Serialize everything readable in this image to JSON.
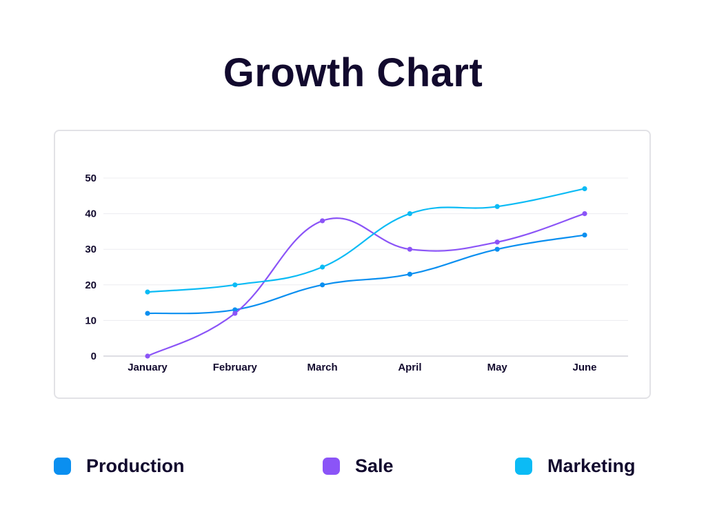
{
  "title": "Growth Chart",
  "chart_data": {
    "type": "line",
    "title": "Growth Chart",
    "xlabel": "",
    "ylabel": "",
    "categories": [
      "January",
      "February",
      "March",
      "April",
      "May",
      "June"
    ],
    "yticks": [
      0,
      10,
      20,
      30,
      40,
      50
    ],
    "ylim": [
      0,
      50
    ],
    "grid": true,
    "legend_position": "bottom",
    "smooth": true,
    "series": [
      {
        "name": "Production",
        "color": "#0a8ff0",
        "values": [
          12,
          13,
          20,
          23,
          30,
          34
        ]
      },
      {
        "name": "Sale",
        "color": "#8b54f7",
        "values": [
          0,
          12,
          38,
          30,
          32,
          40
        ]
      },
      {
        "name": "Marketing",
        "color": "#0bbbf5",
        "values": [
          18,
          20,
          25,
          40,
          42,
          47
        ]
      }
    ]
  },
  "legend": [
    {
      "label": "Production",
      "color": "#0a8ff0"
    },
    {
      "label": "Sale",
      "color": "#8b54f7"
    },
    {
      "label": "Marketing",
      "color": "#0bbbf5"
    }
  ]
}
